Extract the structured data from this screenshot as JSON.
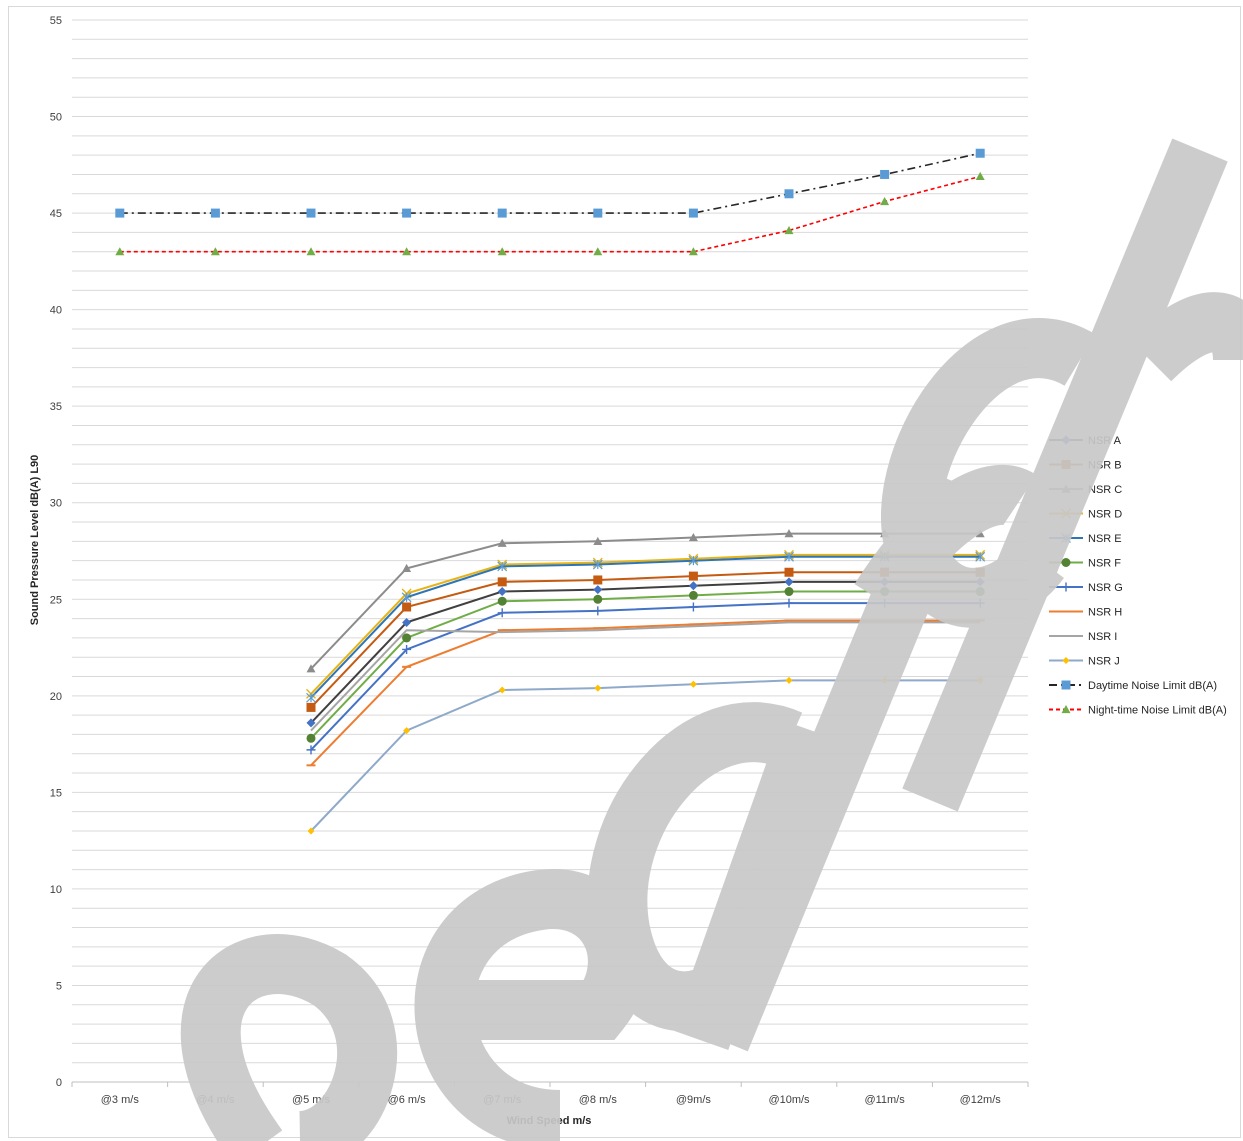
{
  "chart_data": {
    "type": "line",
    "title": "",
    "xlabel": "Wind Speed m/s",
    "ylabel": "Sound Pressure  Level dB(A) L90",
    "ylim": [
      0,
      55
    ],
    "y_ticks": [
      0,
      5,
      10,
      15,
      20,
      25,
      30,
      35,
      40,
      45,
      50,
      55
    ],
    "y_minor_step": 1,
    "grid": "horizontal lines every 1 dB",
    "legend": "right",
    "categories": [
      "@3 m/s",
      "@4 m/s",
      "@5 m/s",
      "@6 m/s",
      "@7 m/s",
      "@8 m/s",
      "@9m/s",
      "@10m/s",
      "@11m/s",
      "@12m/s"
    ],
    "series": [
      {
        "name": "NSR A",
        "color": "#4472C4",
        "line_color": "#404040",
        "marker": "diamond",
        "dash": "solid",
        "values": [
          null,
          null,
          18.6,
          23.8,
          25.4,
          25.5,
          25.7,
          25.9,
          25.9,
          25.9
        ]
      },
      {
        "name": "NSR B",
        "color": "#C55A11",
        "line_color": "#C55A11",
        "marker": "square",
        "dash": "solid",
        "values": [
          null,
          null,
          19.4,
          24.6,
          25.9,
          26.0,
          26.2,
          26.4,
          26.4,
          26.4
        ]
      },
      {
        "name": "NSR C",
        "color": "#8C8C8C",
        "line_color": "#8C8C8C",
        "marker": "triangle",
        "dash": "solid",
        "values": [
          null,
          null,
          21.4,
          26.6,
          27.9,
          28.0,
          28.2,
          28.4,
          28.4,
          28.4
        ]
      },
      {
        "name": "NSR D",
        "color": "#E7B416",
        "line_color": "#E7B416",
        "marker": "x",
        "dash": "solid",
        "values": [
          null,
          null,
          20.1,
          25.3,
          26.8,
          26.9,
          27.1,
          27.3,
          27.3,
          27.3
        ]
      },
      {
        "name": "NSR E",
        "color": "#5B9BD5",
        "line_color": "#2E75B6",
        "marker": "asterisk",
        "dash": "solid",
        "values": [
          null,
          null,
          19.9,
          25.1,
          26.7,
          26.8,
          27.0,
          27.2,
          27.2,
          27.2
        ]
      },
      {
        "name": "NSR F",
        "color": "#548235",
        "line_color": "#70AD47",
        "marker": "circle",
        "dash": "solid",
        "values": [
          null,
          null,
          17.8,
          23.0,
          24.9,
          25.0,
          25.2,
          25.4,
          25.4,
          25.4
        ]
      },
      {
        "name": "NSR G",
        "color": "#4472C4",
        "line_color": "#4472C4",
        "marker": "plus",
        "dash": "solid",
        "values": [
          null,
          null,
          17.2,
          22.4,
          24.3,
          24.4,
          24.6,
          24.8,
          24.8,
          24.8
        ]
      },
      {
        "name": "NSR H",
        "color": "#ED7D31",
        "line_color": "#ED7D31",
        "marker": "dash",
        "dash": "solid",
        "values": [
          null,
          null,
          16.4,
          21.5,
          23.4,
          23.5,
          23.7,
          23.9,
          23.9,
          23.9
        ]
      },
      {
        "name": "NSR I",
        "color": "#A5A5A5",
        "line_color": "#A5A5A5",
        "marker": "none",
        "dash": "solid",
        "values": [
          null,
          null,
          18.2,
          23.4,
          23.3,
          23.4,
          23.6,
          23.8,
          23.8,
          23.8
        ]
      },
      {
        "name": "NSR J",
        "color": "#FFC000",
        "line_color": "#8EA9C9",
        "marker": "small-diamond",
        "dash": "solid",
        "values": [
          null,
          null,
          13.0,
          18.2,
          20.3,
          20.4,
          20.6,
          20.8,
          20.8,
          20.8
        ]
      },
      {
        "name": "Daytime Noise Limit dB(A)",
        "color": "#5B9BD5",
        "line_color": "#262626",
        "marker": "square",
        "dash": "dashdot",
        "values": [
          45,
          45,
          45,
          45,
          45,
          45,
          45,
          46,
          47,
          48.1
        ]
      },
      {
        "name": "Night-time Noise Limit dB(A)",
        "color": "#70AD47",
        "line_color": "#FF0000",
        "marker": "triangle",
        "dash": "dash",
        "values": [
          43,
          43,
          43,
          43,
          43,
          43,
          43,
          44.1,
          45.6,
          46.9
        ]
      }
    ]
  }
}
